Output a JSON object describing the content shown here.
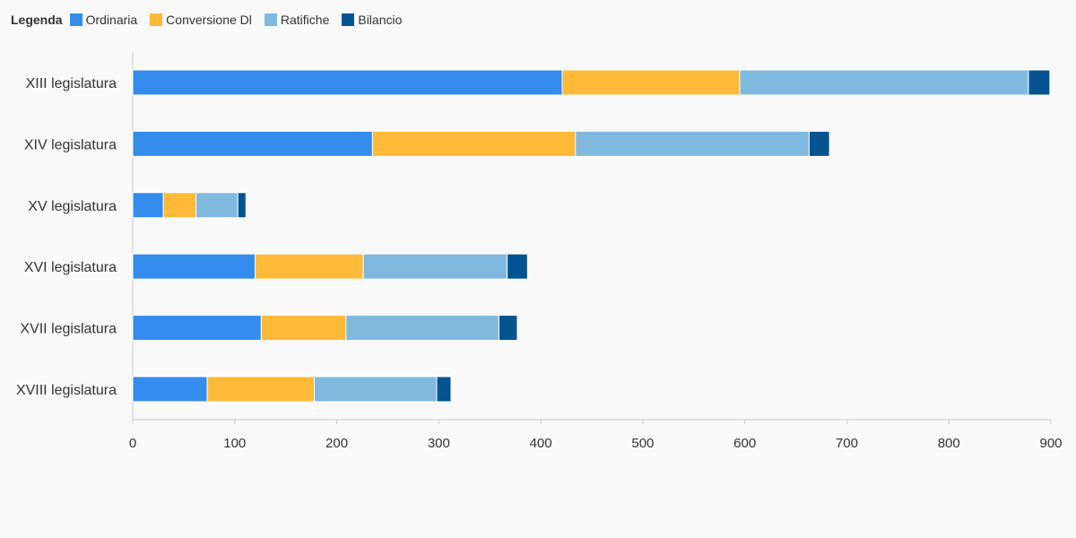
{
  "chart_data": {
    "type": "bar",
    "orientation": "horizontal",
    "stacked": true,
    "legend_title": "Legenda",
    "legend_position": "top-left",
    "categories": [
      "XIII legislatura",
      "XIV legislatura",
      "XV legislatura",
      "XVI legislatura",
      "XVII legislatura",
      "XVIII legislatura"
    ],
    "series": [
      {
        "name": "Ordinaria",
        "color": "#348ced",
        "values": [
          421,
          235,
          30,
          120,
          126,
          73
        ]
      },
      {
        "name": "Conversione Dl",
        "color": "#ffb938",
        "values": [
          174,
          199,
          32,
          106,
          83,
          105
        ]
      },
      {
        "name": "Ratifiche",
        "color": "#7fb9e0",
        "values": [
          283,
          229,
          41,
          141,
          150,
          120
        ]
      },
      {
        "name": "Bilancio",
        "color": "#035491",
        "values": [
          21,
          20,
          8,
          20,
          18,
          14
        ]
      }
    ],
    "x_ticks": [
      0,
      100,
      200,
      300,
      400,
      500,
      600,
      700,
      800,
      900
    ],
    "xlim": [
      0,
      900
    ],
    "grid": false,
    "title": "",
    "xlabel": "",
    "ylabel": ""
  }
}
